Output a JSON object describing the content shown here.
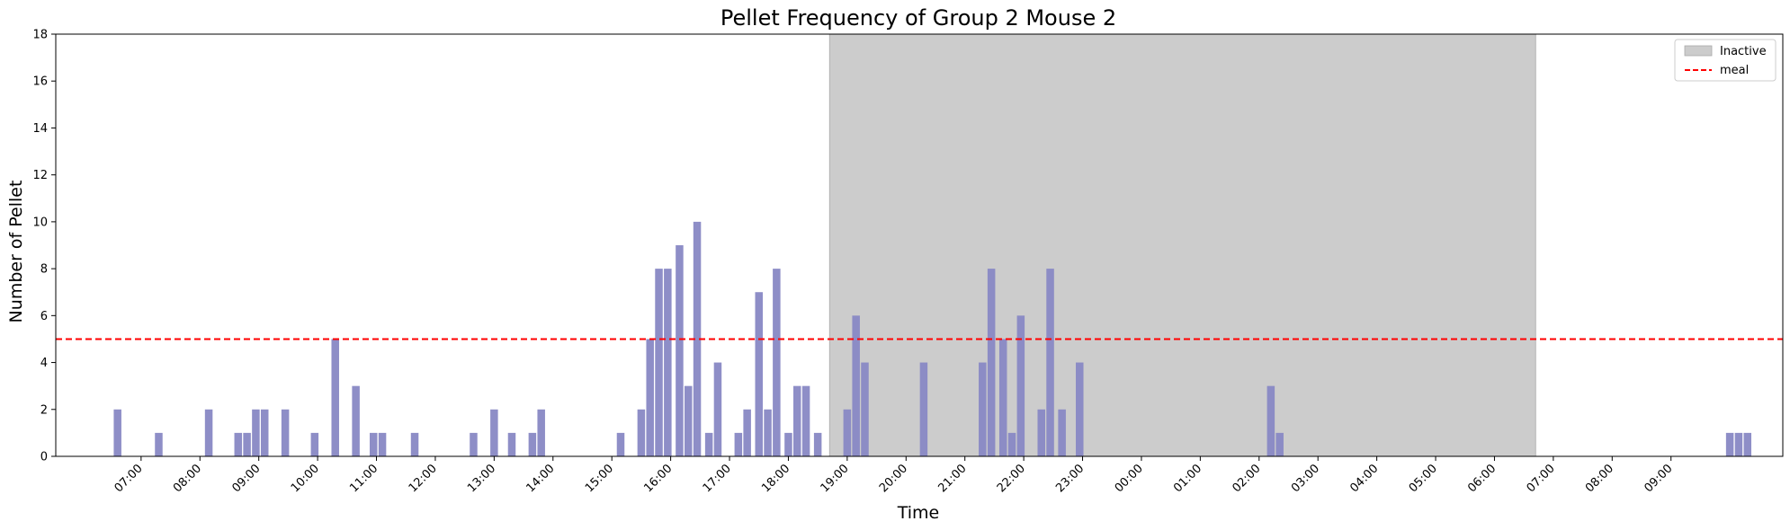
{
  "chart_data": {
    "type": "bar",
    "title": "Pellet Frequency of Group 2 Mouse 2",
    "xlabel": "Time",
    "ylabel": "Number of Pellet",
    "ylim": [
      0,
      18
    ],
    "yticks": [
      0,
      2,
      4,
      6,
      8,
      10,
      12,
      14,
      16,
      18
    ],
    "xticks": [
      "07:00",
      "08:00",
      "09:00",
      "10:00",
      "11:00",
      "12:00",
      "13:00",
      "14:00",
      "15:00",
      "16:00",
      "17:00",
      "18:00",
      "19:00",
      "20:00",
      "21:00",
      "22:00",
      "23:00",
      "00:00",
      "01:00",
      "02:00",
      "03:00",
      "04:00",
      "05:00",
      "06:00",
      "07:00",
      "08:00",
      "09:00"
    ],
    "xlim_hours": [
      5.55,
      34.9
    ],
    "bar_width_hours": 0.13,
    "bar_color": "#8888c4",
    "bars": [
      {
        "t": 6.6,
        "v": 2
      },
      {
        "t": 7.3,
        "v": 1
      },
      {
        "t": 8.15,
        "v": 2
      },
      {
        "t": 8.65,
        "v": 1
      },
      {
        "t": 8.8,
        "v": 1
      },
      {
        "t": 8.95,
        "v": 2
      },
      {
        "t": 9.1,
        "v": 2
      },
      {
        "t": 9.45,
        "v": 2
      },
      {
        "t": 9.95,
        "v": 1
      },
      {
        "t": 10.3,
        "v": 5
      },
      {
        "t": 10.65,
        "v": 3
      },
      {
        "t": 10.95,
        "v": 1
      },
      {
        "t": 11.1,
        "v": 1
      },
      {
        "t": 11.65,
        "v": 1
      },
      {
        "t": 12.65,
        "v": 1
      },
      {
        "t": 13.0,
        "v": 2
      },
      {
        "t": 13.3,
        "v": 1
      },
      {
        "t": 13.65,
        "v": 1
      },
      {
        "t": 13.8,
        "v": 2
      },
      {
        "t": 15.15,
        "v": 1
      },
      {
        "t": 15.5,
        "v": 2
      },
      {
        "t": 15.65,
        "v": 5
      },
      {
        "t": 15.8,
        "v": 8
      },
      {
        "t": 15.95,
        "v": 8
      },
      {
        "t": 16.15,
        "v": 9
      },
      {
        "t": 16.3,
        "v": 3
      },
      {
        "t": 16.45,
        "v": 10
      },
      {
        "t": 16.65,
        "v": 1
      },
      {
        "t": 16.8,
        "v": 4
      },
      {
        "t": 17.15,
        "v": 1
      },
      {
        "t": 17.3,
        "v": 2
      },
      {
        "t": 17.5,
        "v": 7
      },
      {
        "t": 17.65,
        "v": 2
      },
      {
        "t": 17.8,
        "v": 8
      },
      {
        "t": 18.0,
        "v": 1
      },
      {
        "t": 18.15,
        "v": 3
      },
      {
        "t": 18.3,
        "v": 3
      },
      {
        "t": 18.5,
        "v": 1
      },
      {
        "t": 19.0,
        "v": 2
      },
      {
        "t": 19.15,
        "v": 6
      },
      {
        "t": 19.3,
        "v": 4
      },
      {
        "t": 20.3,
        "v": 4
      },
      {
        "t": 21.3,
        "v": 4
      },
      {
        "t": 21.45,
        "v": 8
      },
      {
        "t": 21.65,
        "v": 5
      },
      {
        "t": 21.8,
        "v": 1
      },
      {
        "t": 21.95,
        "v": 6
      },
      {
        "t": 22.3,
        "v": 2
      },
      {
        "t": 22.45,
        "v": 8
      },
      {
        "t": 22.65,
        "v": 2
      },
      {
        "t": 22.95,
        "v": 4
      },
      {
        "t": 26.2,
        "v": 3
      },
      {
        "t": 26.35,
        "v": 1
      },
      {
        "t": 34.0,
        "v": 1
      },
      {
        "t": 34.15,
        "v": 1
      },
      {
        "t": 34.3,
        "v": 1
      }
    ],
    "inactive_span": {
      "start": 18.7,
      "end": 30.7,
      "color": "#cccccc",
      "label": "Inactive"
    },
    "meal_line": {
      "y": 5,
      "color": "#ff0000",
      "label": "meal",
      "style": "dashed"
    },
    "legend": {
      "position": "top-right",
      "entries": [
        "Inactive",
        "meal"
      ]
    },
    "grid": false
  }
}
